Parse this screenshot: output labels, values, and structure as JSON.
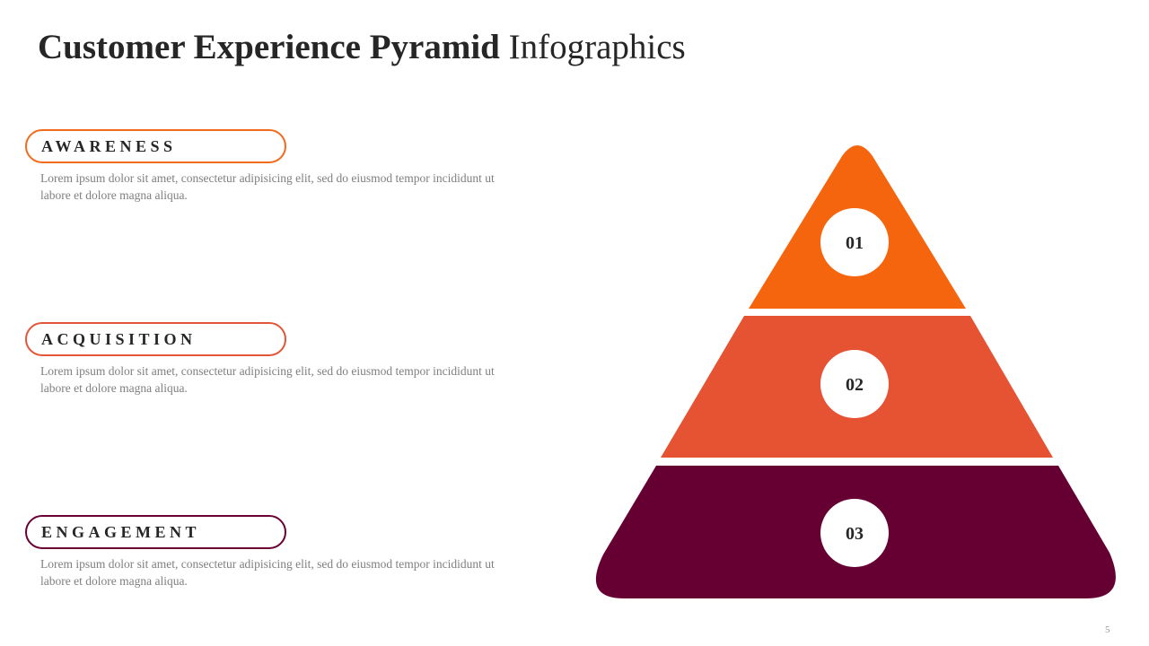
{
  "header": {
    "title_bold": "Customer Experience Pyramid",
    "title_regular": "Infographics"
  },
  "items": [
    {
      "label": "AWARENESS",
      "text": "Lorem ipsum dolor sit amet, consectetur adipisicing elit, sed do eiusmod tempor incididunt ut labore et dolore magna aliqua.",
      "number": "01"
    },
    {
      "label": "ACQUISITION",
      "text": "Lorem ipsum dolor sit amet, consectetur adipisicing elit, sed do eiusmod tempor incididunt ut labore et dolore magna aliqua.",
      "number": "02"
    },
    {
      "label": "ENGAGEMENT",
      "text": "Lorem ipsum dolor sit amet, consectetur adipisicing elit, sed do eiusmod tempor incididunt ut labore et dolore magna aliqua.",
      "number": "03"
    }
  ],
  "page_number": "5"
}
